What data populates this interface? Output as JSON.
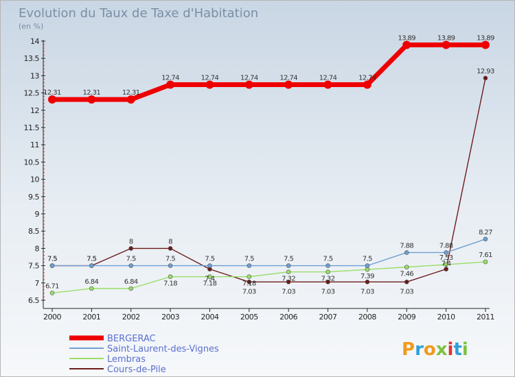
{
  "chart_data": {
    "type": "line",
    "title": "Evolution du Taux de Taxe d'Habitation",
    "subtitle": "(en %)",
    "categories": [
      "2000",
      "2001",
      "2002",
      "2003",
      "2004",
      "2005",
      "2006",
      "2007",
      "2008",
      "2009",
      "2010",
      "2011"
    ],
    "ylim": [
      6.5,
      14
    ],
    "yticks": [
      "6.5",
      "7",
      "7.5",
      "8",
      "8.5",
      "9",
      "9.5",
      "10",
      "10.5",
      "11",
      "11.5",
      "12",
      "12.5",
      "13",
      "13.5",
      "14"
    ],
    "grid": false,
    "legend_position": "bottom-left",
    "series": [
      {
        "name": "BERGERAC",
        "color": "#ee0000",
        "values": [
          12.31,
          12.31,
          12.31,
          12.74,
          12.74,
          12.74,
          12.74,
          12.74,
          12.74,
          13.89,
          13.89,
          13.89
        ],
        "labels": [
          "12.31",
          "12.31",
          "12.31",
          "12.74",
          "12.74",
          "12.74",
          "12.74",
          "12.74",
          "12.74",
          "13.89",
          "13.89",
          "13.89"
        ]
      },
      {
        "name": "Saint-Laurent-des-Vignes",
        "color": "#6f9fd0",
        "values": [
          7.5,
          7.5,
          7.5,
          7.5,
          7.5,
          7.5,
          7.5,
          7.5,
          7.5,
          7.88,
          7.88,
          8.27
        ],
        "labels": [
          "7.5",
          "7.5",
          "7.5",
          "7.5",
          "7.5",
          "7.5",
          "7.5",
          "7.5",
          "7.5",
          "7.88",
          "7.88",
          "8.27"
        ]
      },
      {
        "name": "Lembras",
        "color": "#99dd66",
        "values": [
          6.71,
          6.84,
          6.84,
          7.18,
          7.18,
          7.18,
          7.32,
          7.32,
          7.39,
          7.46,
          7.53,
          7.61
        ],
        "labels": [
          "6.71",
          "6.84",
          "6.84",
          "7.18",
          "7.18",
          "7.18",
          "7.32",
          "7.32",
          "7.39",
          "7.46",
          "7.53",
          "7.61"
        ]
      },
      {
        "name": "Cours-de-Pile",
        "color": "#6b1a1a",
        "values": [
          7.5,
          7.5,
          8,
          8,
          7.4,
          7.03,
          7.03,
          7.03,
          7.03,
          7.03,
          7.4,
          12.93
        ],
        "labels": [
          "7.5",
          "7.5",
          "8",
          "8",
          "7.4",
          "7.03",
          "7.03",
          "7.03",
          "7.03",
          "7.03",
          "7.4",
          "12.93"
        ]
      }
    ]
  },
  "brand": {
    "name": "Proxiti",
    "letters": [
      "P",
      "r",
      "o",
      "x",
      "i",
      "t",
      "i"
    ]
  }
}
